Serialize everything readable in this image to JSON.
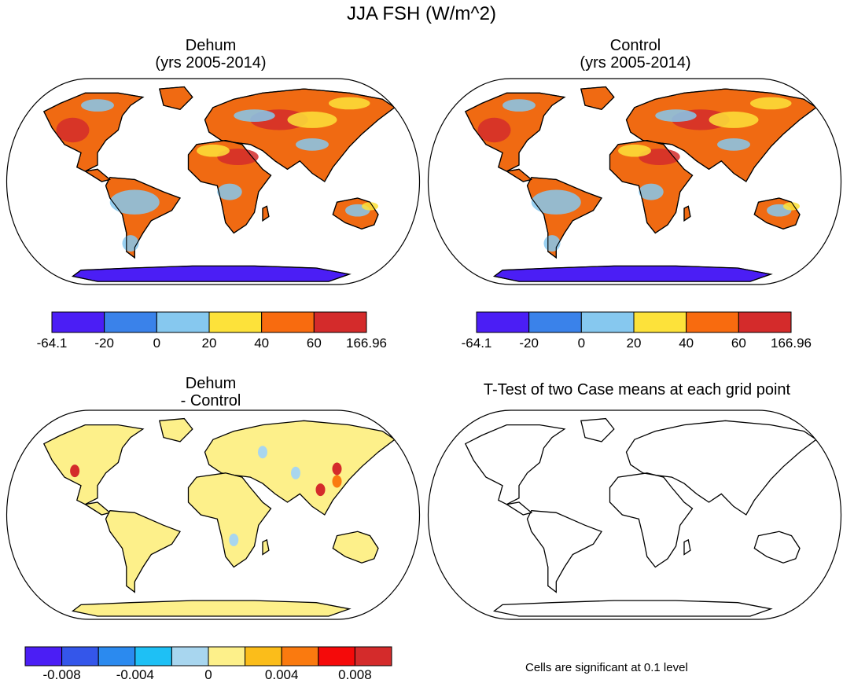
{
  "figure": {
    "title": "JJA FSH (W/m^2)"
  },
  "panels": [
    {
      "id": "dehum",
      "title_line1": "Dehum",
      "title_line2": "(yrs 2005-2014)"
    },
    {
      "id": "control",
      "title_line1": "Control",
      "title_line2": "(yrs 2005-2014)"
    },
    {
      "id": "diff",
      "title_line1": "Dehum",
      "title_line2": "- Control"
    },
    {
      "id": "ttest",
      "title_line1": "T-Test of two Case means at each grid point",
      "title_line2": ""
    }
  ],
  "colorbars": {
    "field": {
      "colors": [
        "#4b1ef5",
        "#3a82ea",
        "#86c8ef",
        "#fde23a",
        "#f86b0f",
        "#d42b2b"
      ],
      "labels": [
        "-64.1",
        "-20",
        "0",
        "20",
        "40",
        "60",
        "166.96"
      ]
    },
    "diff": {
      "colors": [
        "#4b1ef5",
        "#3456ea",
        "#2b8aef",
        "#1ec0f5",
        "#a8d6ef",
        "#fdf08a",
        "#fbbd1a",
        "#fa7a0f",
        "#f50a0a",
        "#d42b2b"
      ],
      "labels": [
        "-0.008",
        "-0.004",
        "0",
        "0.004",
        "0.008"
      ]
    }
  },
  "footer_note": "Cells are significant at 0.1 level",
  "chart_data": {
    "type": "heatmap",
    "title": "JJA FSH (W/m^2)",
    "projection": "Robinson",
    "variable": "FSH",
    "season": "JJA",
    "units": "W/m^2",
    "maps": [
      {
        "name": "Dehum (yrs 2005-2014)",
        "levels": [
          -64.1,
          -20,
          0,
          20,
          40,
          60,
          166.96
        ]
      },
      {
        "name": "Control (yrs 2005-2014)",
        "levels": [
          -64.1,
          -20,
          0,
          20,
          40,
          60,
          166.96
        ]
      },
      {
        "name": "Dehum - Control",
        "levels": [
          -0.008,
          -0.004,
          0,
          0.004,
          0.008
        ]
      },
      {
        "name": "T-Test of two Case means at each grid point",
        "levels": []
      }
    ]
  }
}
